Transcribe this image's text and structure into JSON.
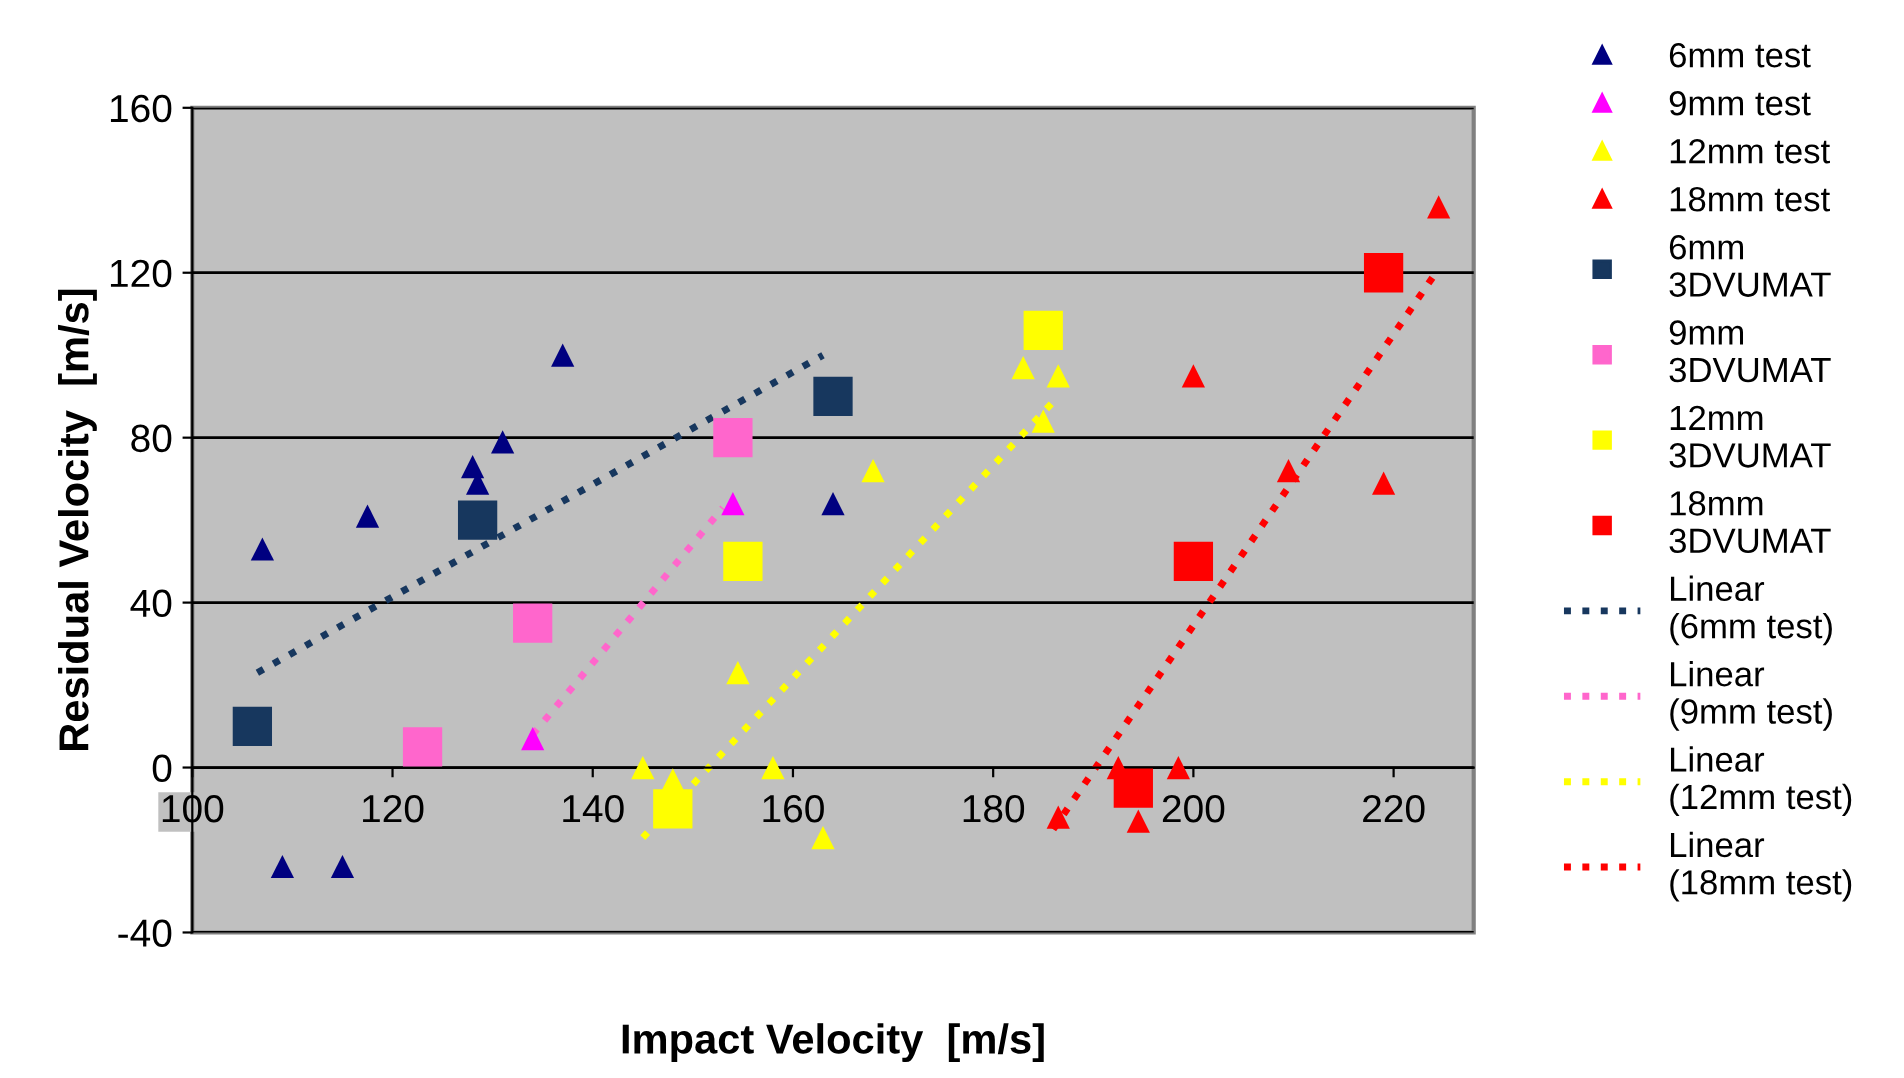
{
  "chart_data": {
    "type": "scatter",
    "xlabel": "Impact Velocity  [m/s]",
    "ylabel": "Residual Velocity  [m/s]",
    "xlim": [
      100,
      228
    ],
    "xticks": [
      100,
      120,
      140,
      160,
      180,
      200,
      220
    ],
    "ylim": [
      -40,
      160
    ],
    "yticks": [
      -40,
      0,
      40,
      80,
      120,
      160
    ],
    "grid": "y",
    "legend": "right",
    "series": [
      {
        "name": "6mm test",
        "marker": "triangle",
        "color": "#000080",
        "x": [
          107,
          109,
          115,
          117.5,
          128,
          128.5,
          131,
          137,
          164
        ],
        "values": [
          53,
          -24,
          -24,
          61,
          73,
          69,
          79,
          100,
          64
        ]
      },
      {
        "name": "9mm test",
        "marker": "triangle",
        "color": "#ff00ff",
        "x": [
          134,
          154
        ],
        "values": [
          7,
          64
        ]
      },
      {
        "name": "12mm test",
        "marker": "triangle",
        "color": "#ffff00",
        "x": [
          145,
          148,
          154.5,
          158,
          163,
          168,
          183,
          185,
          186.5
        ],
        "values": [
          0,
          -3,
          23,
          0,
          -17,
          72,
          97,
          84,
          95
        ]
      },
      {
        "name": "18mm test",
        "marker": "triangle",
        "color": "#ff0000",
        "x": [
          186.5,
          192.5,
          194.5,
          198.5,
          200,
          209.5,
          219,
          224.5
        ],
        "values": [
          -12,
          0,
          -13,
          0,
          95,
          72,
          69,
          136
        ]
      },
      {
        "name": "6mm 3DVUMAT",
        "marker": "square",
        "color": "#17375e",
        "x": [
          106,
          128.5,
          164
        ],
        "values": [
          10,
          60,
          90
        ]
      },
      {
        "name": "9mm 3DVUMAT",
        "marker": "square",
        "color": "#ff66cc",
        "x": [
          123,
          134,
          154
        ],
        "values": [
          5,
          35,
          80
        ]
      },
      {
        "name": "12mm 3DVUMAT",
        "marker": "square",
        "color": "#ffff00",
        "x": [
          148,
          155,
          185
        ],
        "values": [
          -10,
          50,
          106
        ]
      },
      {
        "name": "18mm 3DVUMAT",
        "marker": "square",
        "color": "#ff0000",
        "x": [
          194,
          200,
          219
        ],
        "values": [
          -5,
          50,
          120
        ]
      },
      {
        "name": "Linear (6mm test)",
        "type": "line",
        "marker": "none",
        "line_style": "dotted",
        "color": "#17375e",
        "x": [
          106.5,
          163
        ],
        "values": [
          23,
          100
        ]
      },
      {
        "name": "Linear (9mm test)",
        "type": "line",
        "marker": "none",
        "line_style": "dotted",
        "color": "#ff66cc",
        "x": [
          134,
          153
        ],
        "values": [
          8,
          63
        ]
      },
      {
        "name": "Linear (12mm test)",
        "type": "line",
        "marker": "none",
        "line_style": "dotted",
        "color": "#ffff00",
        "x": [
          145,
          186.5
        ],
        "values": [
          -17,
          90
        ]
      },
      {
        "name": "Linear (18mm test)",
        "type": "line",
        "marker": "none",
        "line_style": "dotted",
        "color": "#ff0000",
        "x": [
          186,
          224.5
        ],
        "values": [
          -15,
          121
        ]
      }
    ]
  }
}
